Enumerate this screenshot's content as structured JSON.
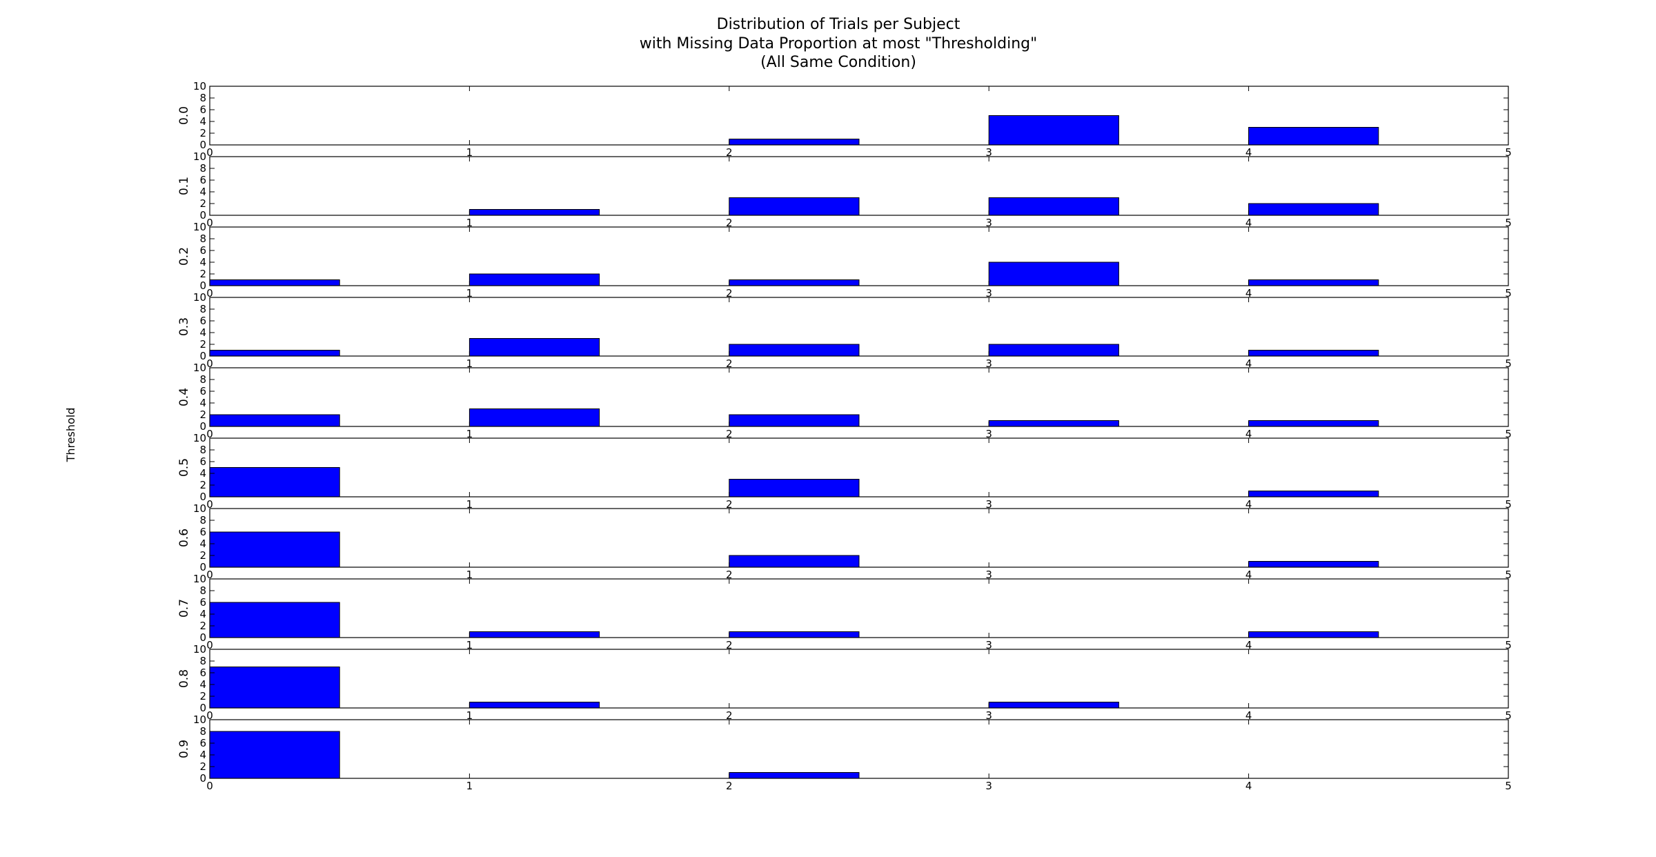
{
  "chart_data": {
    "type": "bar",
    "title": [
      "Distribution of Trials per Subject",
      "with Missing Data Proportion at most \"Thresholding\"",
      "(All Same Condition)"
    ],
    "ylabel": "Threshold",
    "x_ticks": [
      "0",
      "1",
      "2",
      "3",
      "4",
      "5"
    ],
    "y_ticks": [
      "0",
      "2",
      "4",
      "6",
      "8",
      "10"
    ],
    "xlim": [
      0,
      5
    ],
    "ylim": [
      0,
      10
    ],
    "bar_width": 0.5,
    "bar_positions": [
      0,
      1,
      2,
      3,
      4
    ],
    "bar_color": "#0000ff",
    "panels": [
      {
        "label": "0.0",
        "values": [
          0,
          0,
          1,
          5,
          3
        ]
      },
      {
        "label": "0.1",
        "values": [
          0,
          1,
          3,
          3,
          2
        ]
      },
      {
        "label": "0.2",
        "values": [
          1,
          2,
          1,
          4,
          1
        ]
      },
      {
        "label": "0.3",
        "values": [
          1,
          3,
          2,
          2,
          1
        ]
      },
      {
        "label": "0.4",
        "values": [
          2,
          3,
          2,
          1,
          1
        ]
      },
      {
        "label": "0.5",
        "values": [
          5,
          0,
          3,
          0,
          1
        ]
      },
      {
        "label": "0.6",
        "values": [
          6,
          0,
          2,
          0,
          1
        ]
      },
      {
        "label": "0.7",
        "values": [
          6,
          1,
          1,
          0,
          1
        ]
      },
      {
        "label": "0.8",
        "values": [
          7,
          1,
          0,
          1,
          0
        ]
      },
      {
        "label": "0.9",
        "values": [
          8,
          0,
          1,
          0,
          0
        ]
      }
    ]
  }
}
